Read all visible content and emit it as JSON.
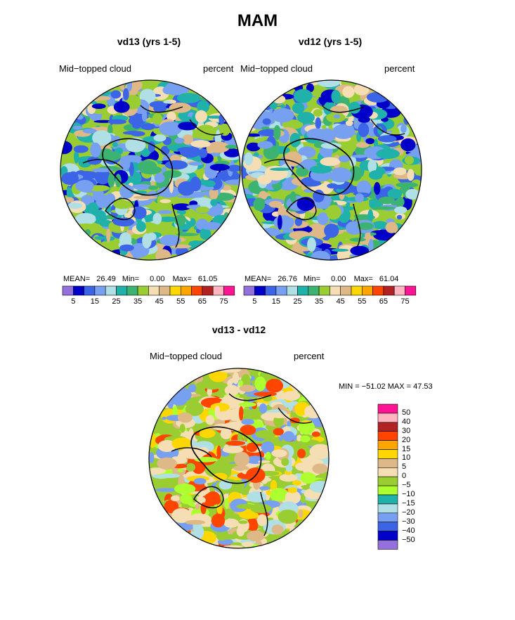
{
  "title": "MAM",
  "variable_label": "Mid−topped cloud",
  "units_label": "percent",
  "panels": [
    {
      "title": "vd13 (yrs 1-5)",
      "stats": {
        "mean_label": "MEAN=",
        "mean": "26.49",
        "min_label": "Min=",
        "min": "0.00",
        "max_label": "Max=",
        "max": "61.05"
      }
    },
    {
      "title": "vd12 (yrs 1-5)",
      "stats": {
        "mean_label": "MEAN=",
        "mean": "26.76",
        "min_label": "Min=",
        "min": "0.00",
        "max_label": "Max=",
        "max": "61.04"
      }
    }
  ],
  "diff_panel": {
    "title": "vd13 - vd12",
    "minmax_text": "MIN = −51.02 MAX =  47.53"
  },
  "abs_colorbar": {
    "colors": [
      "#9370db",
      "#0000c8",
      "#3c64e6",
      "#78a0f0",
      "#b0e0e6",
      "#20b2aa",
      "#3cb371",
      "#9acd32",
      "#f5deb3",
      "#deb887",
      "#ffd700",
      "#ffa500",
      "#ff4500",
      "#b22222",
      "#ffb6c1",
      "#ff1493"
    ],
    "tick_labels": [
      "5",
      "15",
      "25",
      "35",
      "45",
      "55",
      "65",
      "75"
    ]
  },
  "diff_colorbar": {
    "colors": [
      "#ff1493",
      "#ffb6c1",
      "#b22222",
      "#ff4500",
      "#ffa500",
      "#ffd700",
      "#deb887",
      "#f5deb3",
      "#9acd32",
      "#adff2f",
      "#20b2aa",
      "#b0e0e6",
      "#78a0f0",
      "#3c64e6",
      "#0000c8",
      "#9370db"
    ],
    "tick_labels": [
      "50",
      "40",
      "30",
      "20",
      "15",
      "10",
      "5",
      "0",
      "−5",
      "−10",
      "−15",
      "−20",
      "−30",
      "−40",
      "−50"
    ]
  },
  "chart_data": [
    {
      "type": "heatmap",
      "title": "vd13 (yrs 1-5)",
      "projection": "north polar stereographic",
      "variable": "Mid−topped cloud",
      "units": "percent",
      "mean": 26.49,
      "min": 0.0,
      "max": 61.05,
      "levels": [
        5,
        10,
        15,
        20,
        25,
        30,
        35,
        40,
        45,
        50,
        55,
        60,
        65,
        70,
        75
      ]
    },
    {
      "type": "heatmap",
      "title": "vd12 (yrs 1-5)",
      "projection": "north polar stereographic",
      "variable": "Mid−topped cloud",
      "units": "percent",
      "mean": 26.76,
      "min": 0.0,
      "max": 61.04,
      "levels": [
        5,
        10,
        15,
        20,
        25,
        30,
        35,
        40,
        45,
        50,
        55,
        60,
        65,
        70,
        75
      ]
    },
    {
      "type": "heatmap",
      "title": "vd13 - vd12",
      "projection": "north polar stereographic",
      "variable": "Mid−topped cloud",
      "units": "percent",
      "min": -51.02,
      "max": 47.53,
      "levels": [
        -50,
        -40,
        -30,
        -20,
        -15,
        -10,
        -5,
        0,
        5,
        10,
        15,
        20,
        30,
        40,
        50
      ]
    }
  ]
}
